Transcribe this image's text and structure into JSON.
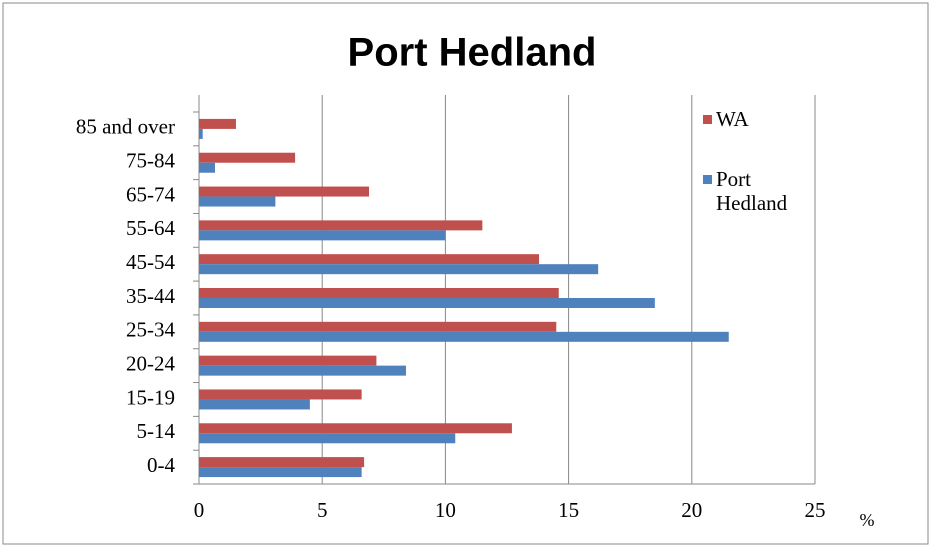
{
  "chart_data": {
    "type": "hbar",
    "title": "Port Hedland",
    "xlabel": "%",
    "categories": [
      "0-4",
      "5-14",
      "15-19",
      "20-24",
      "25-34",
      "35-44",
      "45-54",
      "55-64",
      "65-74",
      "75-84",
      "85 and over"
    ],
    "series": [
      {
        "name": "WA",
        "color": "#c0504d",
        "values": [
          6.7,
          12.7,
          6.6,
          7.2,
          14.5,
          14.6,
          13.8,
          11.5,
          6.9,
          3.9,
          1.5
        ]
      },
      {
        "name": "Port Hedland",
        "color": "#4f81bd",
        "values": [
          6.6,
          10.4,
          4.5,
          8.4,
          21.5,
          18.5,
          16.2,
          10.0,
          3.1,
          0.65,
          0.15
        ]
      }
    ],
    "xlim": [
      0,
      25
    ],
    "xticks": [
      0,
      5,
      10,
      15,
      20,
      25
    ],
    "grid": true
  }
}
